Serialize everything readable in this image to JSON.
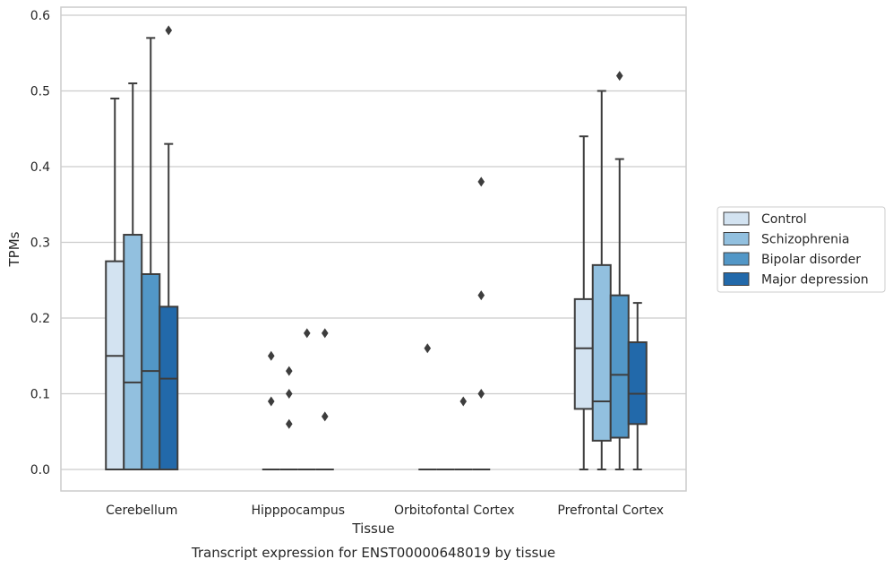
{
  "chart_data": {
    "type": "box",
    "xlabel": "Tissue",
    "ylabel": "TPMs",
    "caption": "Transcript expression for ENST00000648019 by tissue",
    "ylim": [
      -0.028,
      0.612
    ],
    "yticks": [
      "0.0",
      "0.1",
      "0.2",
      "0.3",
      "0.4",
      "0.5",
      "0.6"
    ],
    "grid": true,
    "legend_position": "right",
    "categories": [
      "Cerebellum",
      "Hipppocampus",
      "Orbitofontal Cortex",
      "Prefrontal Cortex"
    ],
    "series": [
      {
        "name": "Control",
        "color": "#d3e3f1",
        "boxes": [
          {
            "min": 0,
            "q1": 0,
            "median": 0.15,
            "q3": 0.275,
            "max": 0.49,
            "outliers": []
          },
          {
            "min": 0,
            "q1": 0,
            "median": 0,
            "q3": 0,
            "max": 0,
            "outliers": [
              0.15,
              0.09
            ]
          },
          {
            "min": 0,
            "q1": 0,
            "median": 0,
            "q3": 0,
            "max": 0,
            "outliers": [
              0.16
            ]
          },
          {
            "min": 0,
            "q1": 0.08,
            "median": 0.16,
            "q3": 0.225,
            "max": 0.44,
            "outliers": []
          }
        ]
      },
      {
        "name": "Schizophrenia",
        "color": "#92c0df",
        "boxes": [
          {
            "min": 0,
            "q1": 0,
            "median": 0.115,
            "q3": 0.31,
            "max": 0.51,
            "outliers": []
          },
          {
            "min": 0,
            "q1": 0,
            "median": 0,
            "q3": 0,
            "max": 0,
            "outliers": [
              0.13,
              0.1,
              0.06
            ]
          },
          {
            "min": 0,
            "q1": 0,
            "median": 0,
            "q3": 0,
            "max": 0,
            "outliers": []
          },
          {
            "min": 0,
            "q1": 0.038,
            "median": 0.09,
            "q3": 0.27,
            "max": 0.5,
            "outliers": []
          }
        ]
      },
      {
        "name": "Bipolar disorder",
        "color": "#5297c7",
        "boxes": [
          {
            "min": 0,
            "q1": 0,
            "median": 0.13,
            "q3": 0.258,
            "max": 0.57,
            "outliers": []
          },
          {
            "min": 0,
            "q1": 0,
            "median": 0,
            "q3": 0,
            "max": 0,
            "outliers": [
              0.18
            ]
          },
          {
            "min": 0,
            "q1": 0,
            "median": 0,
            "q3": 0,
            "max": 0,
            "outliers": [
              0.09
            ]
          },
          {
            "min": 0,
            "q1": 0.042,
            "median": 0.125,
            "q3": 0.23,
            "max": 0.41,
            "outliers": [
              0.52
            ]
          }
        ]
      },
      {
        "name": "Major depression",
        "color": "#2269aa",
        "boxes": [
          {
            "min": 0,
            "q1": 0,
            "median": 0.12,
            "q3": 0.215,
            "max": 0.43,
            "outliers": [
              0.58
            ]
          },
          {
            "min": 0,
            "q1": 0,
            "median": 0,
            "q3": 0,
            "max": 0,
            "outliers": [
              0.18,
              0.07
            ]
          },
          {
            "min": 0,
            "q1": 0,
            "median": 0,
            "q3": 0,
            "max": 0,
            "outliers": [
              0.38,
              0.23,
              0.1
            ]
          },
          {
            "min": 0,
            "q1": 0.06,
            "median": 0.1,
            "q3": 0.168,
            "max": 0.22,
            "outliers": []
          }
        ]
      }
    ]
  }
}
